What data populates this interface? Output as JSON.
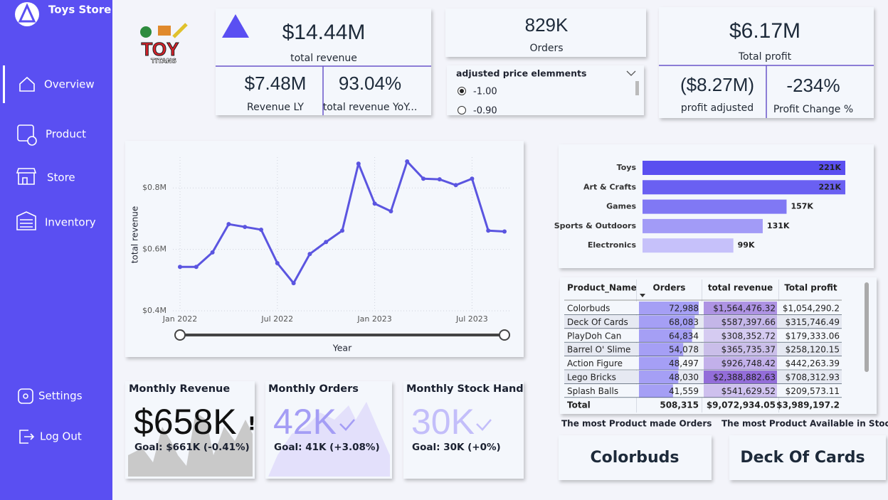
{
  "sidebar": {
    "brand": "Toys Store",
    "nav": [
      "Overview",
      "Product",
      "Store",
      "Inventory"
    ],
    "bottom": [
      "Settings",
      "Log Out"
    ]
  },
  "logo": {
    "title": "TOY",
    "subtitle": "TITANS"
  },
  "kpis": {
    "total_revenue": {
      "value": "$14.44M",
      "label": "total revenue"
    },
    "revenue_ly": {
      "value": "$7.48M",
      "label": "Revenue LY"
    },
    "revenue_yoy": {
      "value": "93.04%",
      "label": "total revenue YoY..."
    },
    "orders": {
      "value": "829K",
      "label": "Orders"
    },
    "total_profit": {
      "value": "$6.17M",
      "label": "Total profit"
    },
    "profit_adjusted": {
      "value": "($8.27M)",
      "label": "profit adjusted"
    },
    "profit_change": {
      "value": "-234%",
      "label": "Profit Change %"
    }
  },
  "slicer": {
    "title": "adjusted price elemments",
    "options": [
      "-1.00",
      "-0.90"
    ]
  },
  "chart_data": [
    {
      "type": "line",
      "y_label": "total revenue",
      "x_label": "Year",
      "color": "#5b55e0",
      "grid": true,
      "x": [
        "2022-01",
        "2022-02",
        "2022-03",
        "2022-04",
        "2022-05",
        "2022-06",
        "2022-07",
        "2022-08",
        "2022-09",
        "2022-10",
        "2022-11",
        "2022-12",
        "2023-01",
        "2023-02",
        "2023-03",
        "2023-04",
        "2023-05",
        "2023-06",
        "2023-07",
        "2023-08",
        "2023-09"
      ],
      "values": [
        543000,
        543000,
        590000,
        682000,
        673000,
        664000,
        555000,
        490000,
        585000,
        624000,
        661000,
        879000,
        749000,
        724000,
        886000,
        830000,
        828000,
        809000,
        830000,
        661000,
        658000
      ],
      "xlim": [
        "2022-01",
        "2023-09"
      ],
      "xticks": [
        {
          "value": "2022-01",
          "label": "Jan 2022"
        },
        {
          "value": "2022-07",
          "label": "Jul 2022"
        },
        {
          "value": "2023-01",
          "label": "Jan 2023"
        },
        {
          "value": "2023-07",
          "label": "Jul 2023"
        }
      ],
      "ylim": [
        400000,
        900000
      ],
      "yticks": [
        {
          "value": 400000,
          "label": "$0.4M"
        },
        {
          "value": 600000,
          "label": "$0.6M"
        },
        {
          "value": 800000,
          "label": "$0.8M"
        }
      ]
    },
    {
      "type": "bar",
      "orientation": "horizontal",
      "categories": [
        "Toys",
        "Art & Crafts",
        "Games",
        "Sports & Outdoors",
        "Electronics"
      ],
      "values": [
        221000,
        221000,
        157000,
        131000,
        99000
      ],
      "value_labels": [
        "221K",
        "221K",
        "157K",
        "131K",
        "99K"
      ],
      "colors": [
        "#5a4ff0",
        "#6a60f2",
        "#8078f4",
        "#a29bf7",
        "#c6c1fa"
      ]
    }
  ],
  "table": {
    "columns": [
      "Product_Name",
      "Orders",
      "total revenue",
      "Total profit"
    ],
    "rows": [
      [
        "Colorbuds",
        "72,988",
        "$1,564,476.32",
        "$1,054,290.2"
      ],
      [
        "Deck Of Cards",
        "68,083",
        "$587,397.66",
        "$315,746.49"
      ],
      [
        "PlayDoh Can",
        "64,834",
        "$308,352.72",
        "$179,333.06"
      ],
      [
        "Barrel O' Slime",
        "54,078",
        "$365,735.37",
        "$258,120.15"
      ],
      [
        "Action Figure",
        "48,497",
        "$926,748.42",
        "$442,263.39"
      ],
      [
        "Lego Bricks",
        "48,030",
        "$2,388,882.63",
        "$708,312.93"
      ],
      [
        "Splash Balls",
        "41,559",
        "$541,629.52",
        "$209,573.11"
      ]
    ],
    "total": [
      "Total",
      "508,315",
      "$9,072,934.05",
      "$3,989,197.2"
    ]
  },
  "monthly": [
    {
      "title": "Monthly Revenue",
      "value": "$658K",
      "alert": "!",
      "goal": "Goal: $661K (-0.41%)"
    },
    {
      "title": "Monthly Orders",
      "value": "42K",
      "goal": "Goal: 41K (+3.08%)"
    },
    {
      "title": "Monthly Stock Hand",
      "value": "30K",
      "goal": "Goal: 30K (+0%)"
    }
  ],
  "highlights": [
    {
      "label": "The most Product made Orders",
      "value": "Colorbuds"
    },
    {
      "label": "The most Product Available in Stock",
      "value": "Deck Of Cards"
    }
  ]
}
